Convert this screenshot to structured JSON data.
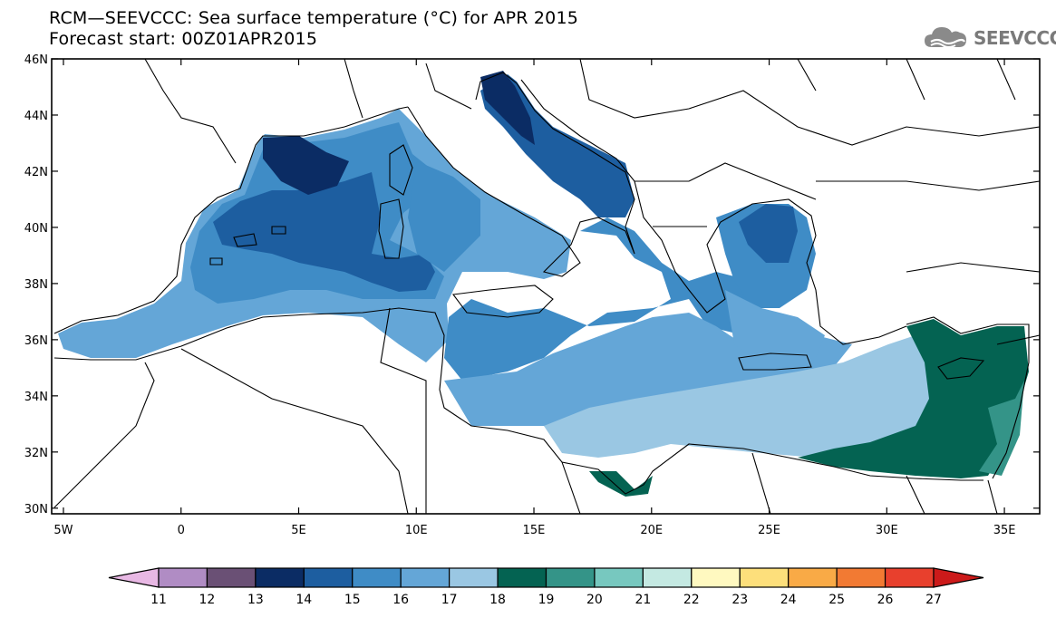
{
  "header": {
    "title": "RCM—SEEVCCC: Sea surface temperature (°C) for APR 2015",
    "subtitle": "Forecast start: 00Z01APR2015"
  },
  "logo": {
    "text": "SEEVCCC",
    "icon": "cloud-icon"
  },
  "map": {
    "lon_range": [
      -5.5,
      36.5
    ],
    "lat_range": [
      29.8,
      46
    ],
    "lat_ticks": [
      {
        "value": 46,
        "label": "46N"
      },
      {
        "value": 44,
        "label": "44N"
      },
      {
        "value": 42,
        "label": "42N"
      },
      {
        "value": 40,
        "label": "40N"
      },
      {
        "value": 38,
        "label": "38N"
      },
      {
        "value": 36,
        "label": "36N"
      },
      {
        "value": 34,
        "label": "34N"
      },
      {
        "value": 32,
        "label": "32N"
      },
      {
        "value": 30,
        "label": "30N"
      }
    ],
    "lon_ticks": [
      {
        "value": -5,
        "label": "5W"
      },
      {
        "value": 0,
        "label": "0"
      },
      {
        "value": 5,
        "label": "5E"
      },
      {
        "value": 10,
        "label": "10E"
      },
      {
        "value": 15,
        "label": "15E"
      },
      {
        "value": 20,
        "label": "20E"
      },
      {
        "value": 25,
        "label": "25E"
      },
      {
        "value": 30,
        "label": "30E"
      },
      {
        "value": 35,
        "label": "35E"
      }
    ]
  },
  "colorbar": {
    "labels": [
      "11",
      "12",
      "13",
      "14",
      "15",
      "16",
      "17",
      "18",
      "19",
      "20",
      "21",
      "22",
      "23",
      "24",
      "25",
      "26",
      "27"
    ],
    "colors": [
      "#e8b8e4",
      "#b08cc4",
      "#6a5075",
      "#0b2c64",
      "#1d5ea0",
      "#3f8cc6",
      "#64a6d7",
      "#9ac7e3",
      "#046352",
      "#349488",
      "#77c8bf",
      "#c4e9e2",
      "#fff9c0",
      "#fddf7b",
      "#f9aa46",
      "#f27a33",
      "#e8402d",
      "#cc1a1a"
    ]
  }
}
